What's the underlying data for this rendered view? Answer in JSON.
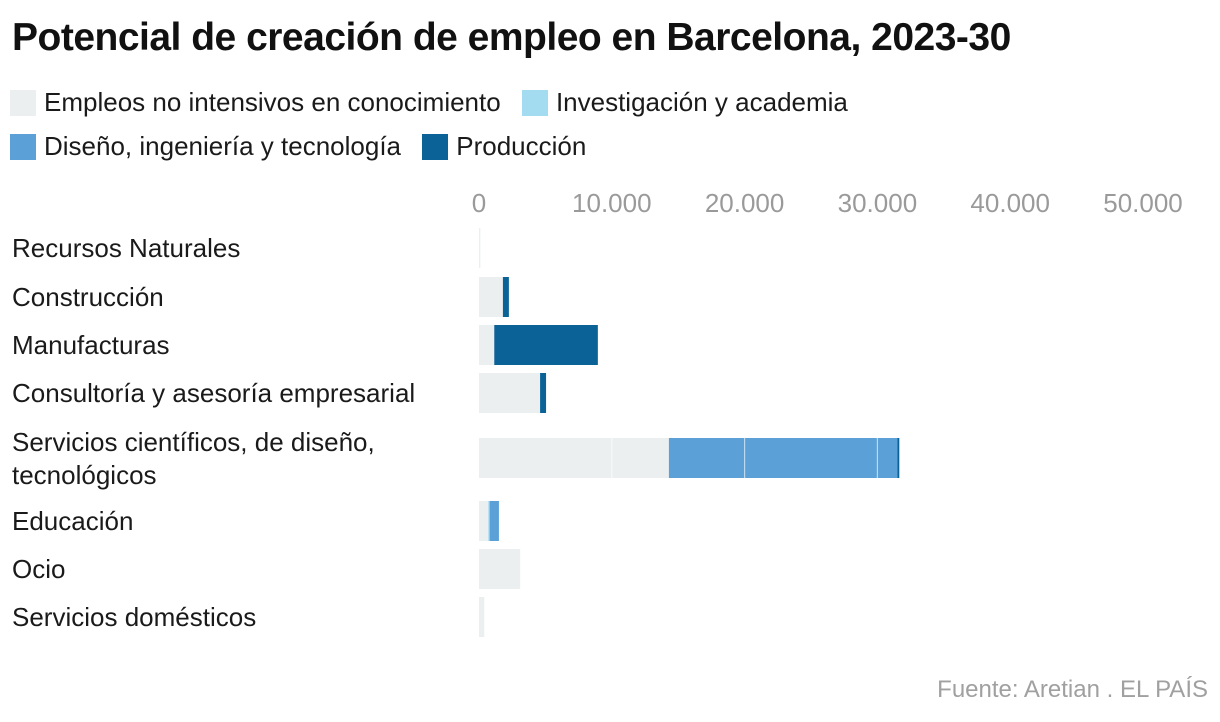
{
  "chart_data": {
    "type": "bar",
    "orientation": "horizontal",
    "stacked": true,
    "title": "Potencial de creación de empleo en Barcelona, 2023-30",
    "source": "Fuente: Aretian . EL PAÍS",
    "xlim": [
      0,
      50000
    ],
    "xticks": [
      {
        "value": 0,
        "label": "0"
      },
      {
        "value": 10000,
        "label": "10.000"
      },
      {
        "value": 20000,
        "label": "20.000"
      },
      {
        "value": 30000,
        "label": "30.000"
      },
      {
        "value": 40000,
        "label": "40.000"
      },
      {
        "value": 50000,
        "label": "50.000"
      }
    ],
    "legend_position": "top-left",
    "grid": false,
    "categories": [
      "Recursos Naturales",
      "Construcción",
      "Manufacturas",
      "Consultoría y asesoría empresarial",
      "Servicios científicos, de diseño, tecnológicos",
      "Educación",
      "Ocio",
      "Servicios domésticos"
    ],
    "category_lines": [
      [
        "Recursos Naturales"
      ],
      [
        "Construcción"
      ],
      [
        "Manufacturas"
      ],
      [
        "Consultoría y asesoría empresarial"
      ],
      [
        "Servicios científicos, de diseño,",
        "tecnológicos"
      ],
      [
        "Educación"
      ],
      [
        "Ocio"
      ],
      [
        "Servicios domésticos"
      ]
    ],
    "series": [
      {
        "name": "Empleos no intensivos en conocimiento",
        "color": "#eceff0",
        "values": [
          100,
          1800,
          1150,
          4600,
          14300,
          700,
          3100,
          400
        ]
      },
      {
        "name": "Investigación y academia",
        "color": "#a3dbf0",
        "values": [
          0,
          0,
          0,
          0,
          0,
          100,
          0,
          0
        ]
      },
      {
        "name": "Diseño, ingeniería y tecnología",
        "color": "#5ba0d6",
        "values": [
          0,
          0,
          0,
          0,
          17200,
          700,
          0,
          0
        ]
      },
      {
        "name": "Producción",
        "color": "#0b6296",
        "values": [
          0,
          450,
          7800,
          450,
          150,
          0,
          0,
          0
        ]
      }
    ],
    "internal_dividers": [
      {
        "category": 4,
        "value": 10000
      },
      {
        "category": 4,
        "value": 20000
      },
      {
        "category": 4,
        "value": 30000
      }
    ]
  }
}
